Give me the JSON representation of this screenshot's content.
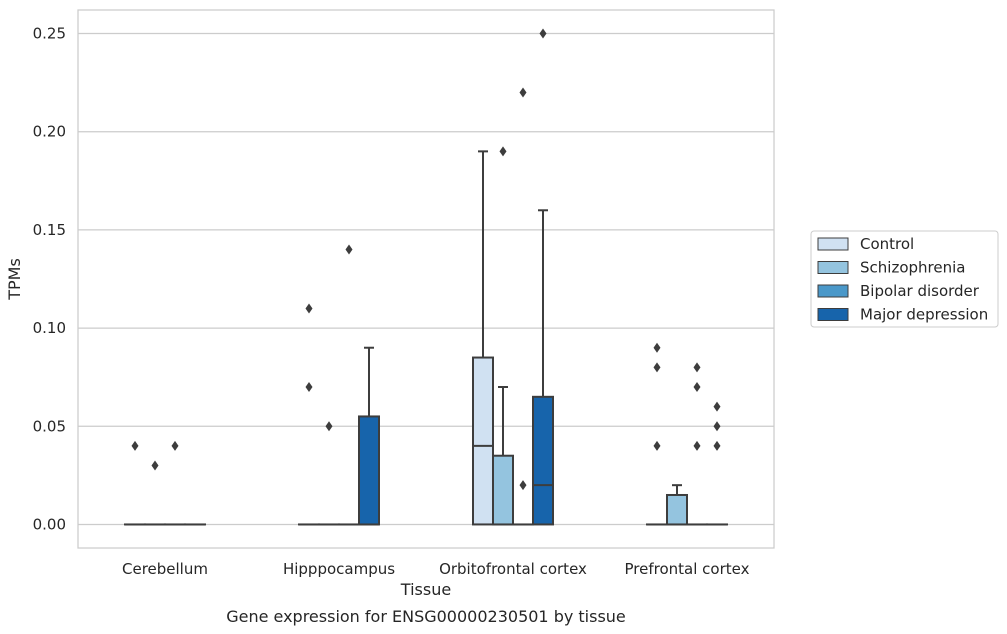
{
  "chart_data": {
    "type": "box",
    "xlabel": "Tissue",
    "ylabel": "TPMs",
    "caption": "Gene expression for ENSG00000230501 by tissue",
    "categories": [
      "Cerebellum",
      "Hipppocampus",
      "Orbitofrontal cortex",
      "Prefrontal cortex"
    ],
    "ylim": [
      -0.012,
      0.262
    ],
    "yticks": [
      0.0,
      0.05,
      0.1,
      0.15,
      0.2,
      0.25
    ],
    "ytick_labels": [
      "0.00",
      "0.05",
      "0.10",
      "0.15",
      "0.20",
      "0.25"
    ],
    "grid": "horizontal",
    "legend_position": "right",
    "series": [
      {
        "name": "Control",
        "color": "#d0e1f2",
        "boxes": [
          {
            "q1": 0,
            "median": 0,
            "q3": 0,
            "whisker_low": 0,
            "whisker_high": 0,
            "outliers": [
              0.04
            ]
          },
          {
            "q1": 0,
            "median": 0,
            "q3": 0,
            "whisker_low": 0,
            "whisker_high": 0,
            "outliers": [
              0.11,
              0.07
            ]
          },
          {
            "q1": 0,
            "median": 0.04,
            "q3": 0.085,
            "whisker_low": 0,
            "whisker_high": 0.19,
            "outliers": []
          },
          {
            "q1": 0,
            "median": 0,
            "q3": 0,
            "whisker_low": 0,
            "whisker_high": 0,
            "outliers": [
              0.09,
              0.08,
              0.04
            ]
          }
        ]
      },
      {
        "name": "Schizophrenia",
        "color": "#94c4df",
        "boxes": [
          {
            "q1": 0,
            "median": 0,
            "q3": 0,
            "whisker_low": 0,
            "whisker_high": 0,
            "outliers": [
              0.03
            ]
          },
          {
            "q1": 0,
            "median": 0,
            "q3": 0,
            "whisker_low": 0,
            "whisker_high": 0,
            "outliers": [
              0.05
            ]
          },
          {
            "q1": 0,
            "median": 0,
            "q3": 0.035,
            "whisker_low": 0,
            "whisker_high": 0.07,
            "outliers": [
              0.19
            ]
          },
          {
            "q1": 0,
            "median": 0,
            "q3": 0.015,
            "whisker_low": 0,
            "whisker_high": 0.02,
            "outliers": []
          }
        ]
      },
      {
        "name": "Bipolar disorder",
        "color": "#4a98c9",
        "boxes": [
          {
            "q1": 0,
            "median": 0,
            "q3": 0,
            "whisker_low": 0,
            "whisker_high": 0,
            "outliers": [
              0.04
            ]
          },
          {
            "q1": 0,
            "median": 0,
            "q3": 0,
            "whisker_low": 0,
            "whisker_high": 0,
            "outliers": [
              0.14
            ]
          },
          {
            "q1": 0,
            "median": 0,
            "q3": 0,
            "whisker_low": 0,
            "whisker_high": 0,
            "outliers": [
              0.22,
              0.02
            ]
          },
          {
            "q1": 0,
            "median": 0,
            "q3": 0,
            "whisker_low": 0,
            "whisker_high": 0,
            "outliers": [
              0.08,
              0.07,
              0.04
            ]
          }
        ]
      },
      {
        "name": "Major depression",
        "color": "#1764ab",
        "boxes": [
          {
            "q1": 0,
            "median": 0,
            "q3": 0,
            "whisker_low": 0,
            "whisker_high": 0,
            "outliers": []
          },
          {
            "q1": 0,
            "median": 0,
            "q3": 0.055,
            "whisker_low": 0,
            "whisker_high": 0.09,
            "outliers": []
          },
          {
            "q1": 0,
            "median": 0.02,
            "q3": 0.065,
            "whisker_low": 0,
            "whisker_high": 0.16,
            "outliers": [
              0.25
            ]
          },
          {
            "q1": 0,
            "median": 0,
            "q3": 0,
            "whisker_low": 0,
            "whisker_high": 0,
            "outliers": [
              0.06,
              0.05,
              0.04
            ]
          }
        ]
      }
    ]
  }
}
